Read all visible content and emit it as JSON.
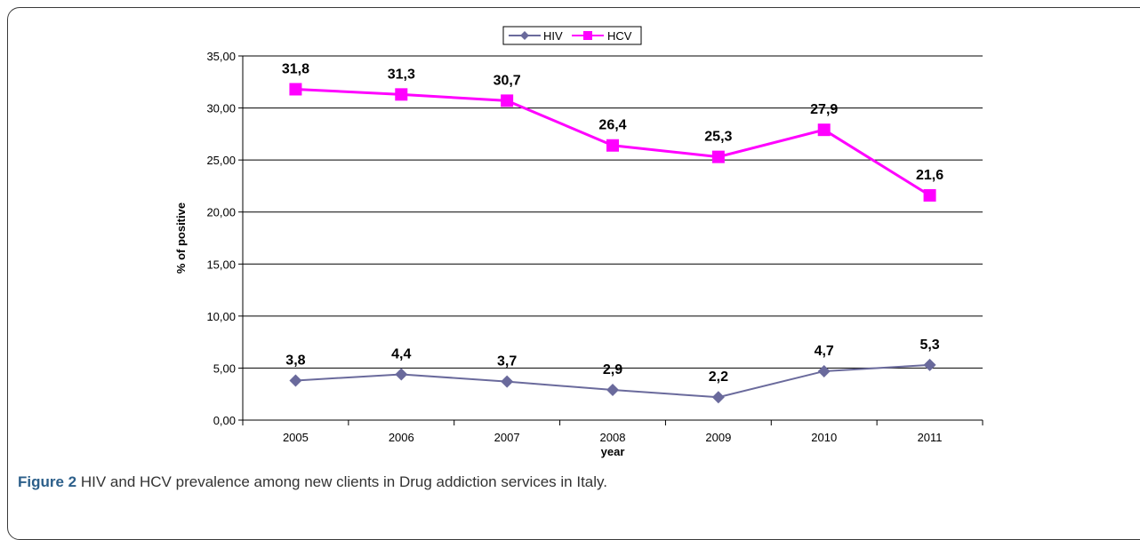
{
  "chart_data": {
    "type": "line",
    "categories": [
      "2005",
      "2006",
      "2007",
      "2008",
      "2009",
      "2010",
      "2011"
    ],
    "series": [
      {
        "name": "HIV",
        "values": [
          3.8,
          4.4,
          3.7,
          2.9,
          2.2,
          4.7,
          5.3
        ],
        "labels": [
          "3,8",
          "4,4",
          "3,7",
          "2,9",
          "2,2",
          "4,7",
          "5,3"
        ],
        "color": "#6a6a9c",
        "marker": "diamond"
      },
      {
        "name": "HCV",
        "values": [
          31.8,
          31.3,
          30.7,
          26.4,
          25.3,
          27.9,
          21.6
        ],
        "labels": [
          "31,8",
          "31,3",
          "30,7",
          "26,4",
          "25,3",
          "27,9",
          "21,6"
        ],
        "color": "#ff00ff",
        "marker": "square"
      }
    ],
    "xlabel": "year",
    "ylabel": "% of positive",
    "ylim": [
      0,
      35
    ],
    "yticks": [
      0,
      5,
      10,
      15,
      20,
      25,
      30,
      35
    ],
    "ytick_labels": [
      "0,00",
      "5,00",
      "10,00",
      "15,00",
      "20,00",
      "25,00",
      "30,00",
      "35,00"
    ],
    "grid": true,
    "legend": "top-center"
  },
  "caption": {
    "label": "Figure 2",
    "text": "HIV and HCV prevalence among new clients in Drug addiction services in Italy."
  }
}
